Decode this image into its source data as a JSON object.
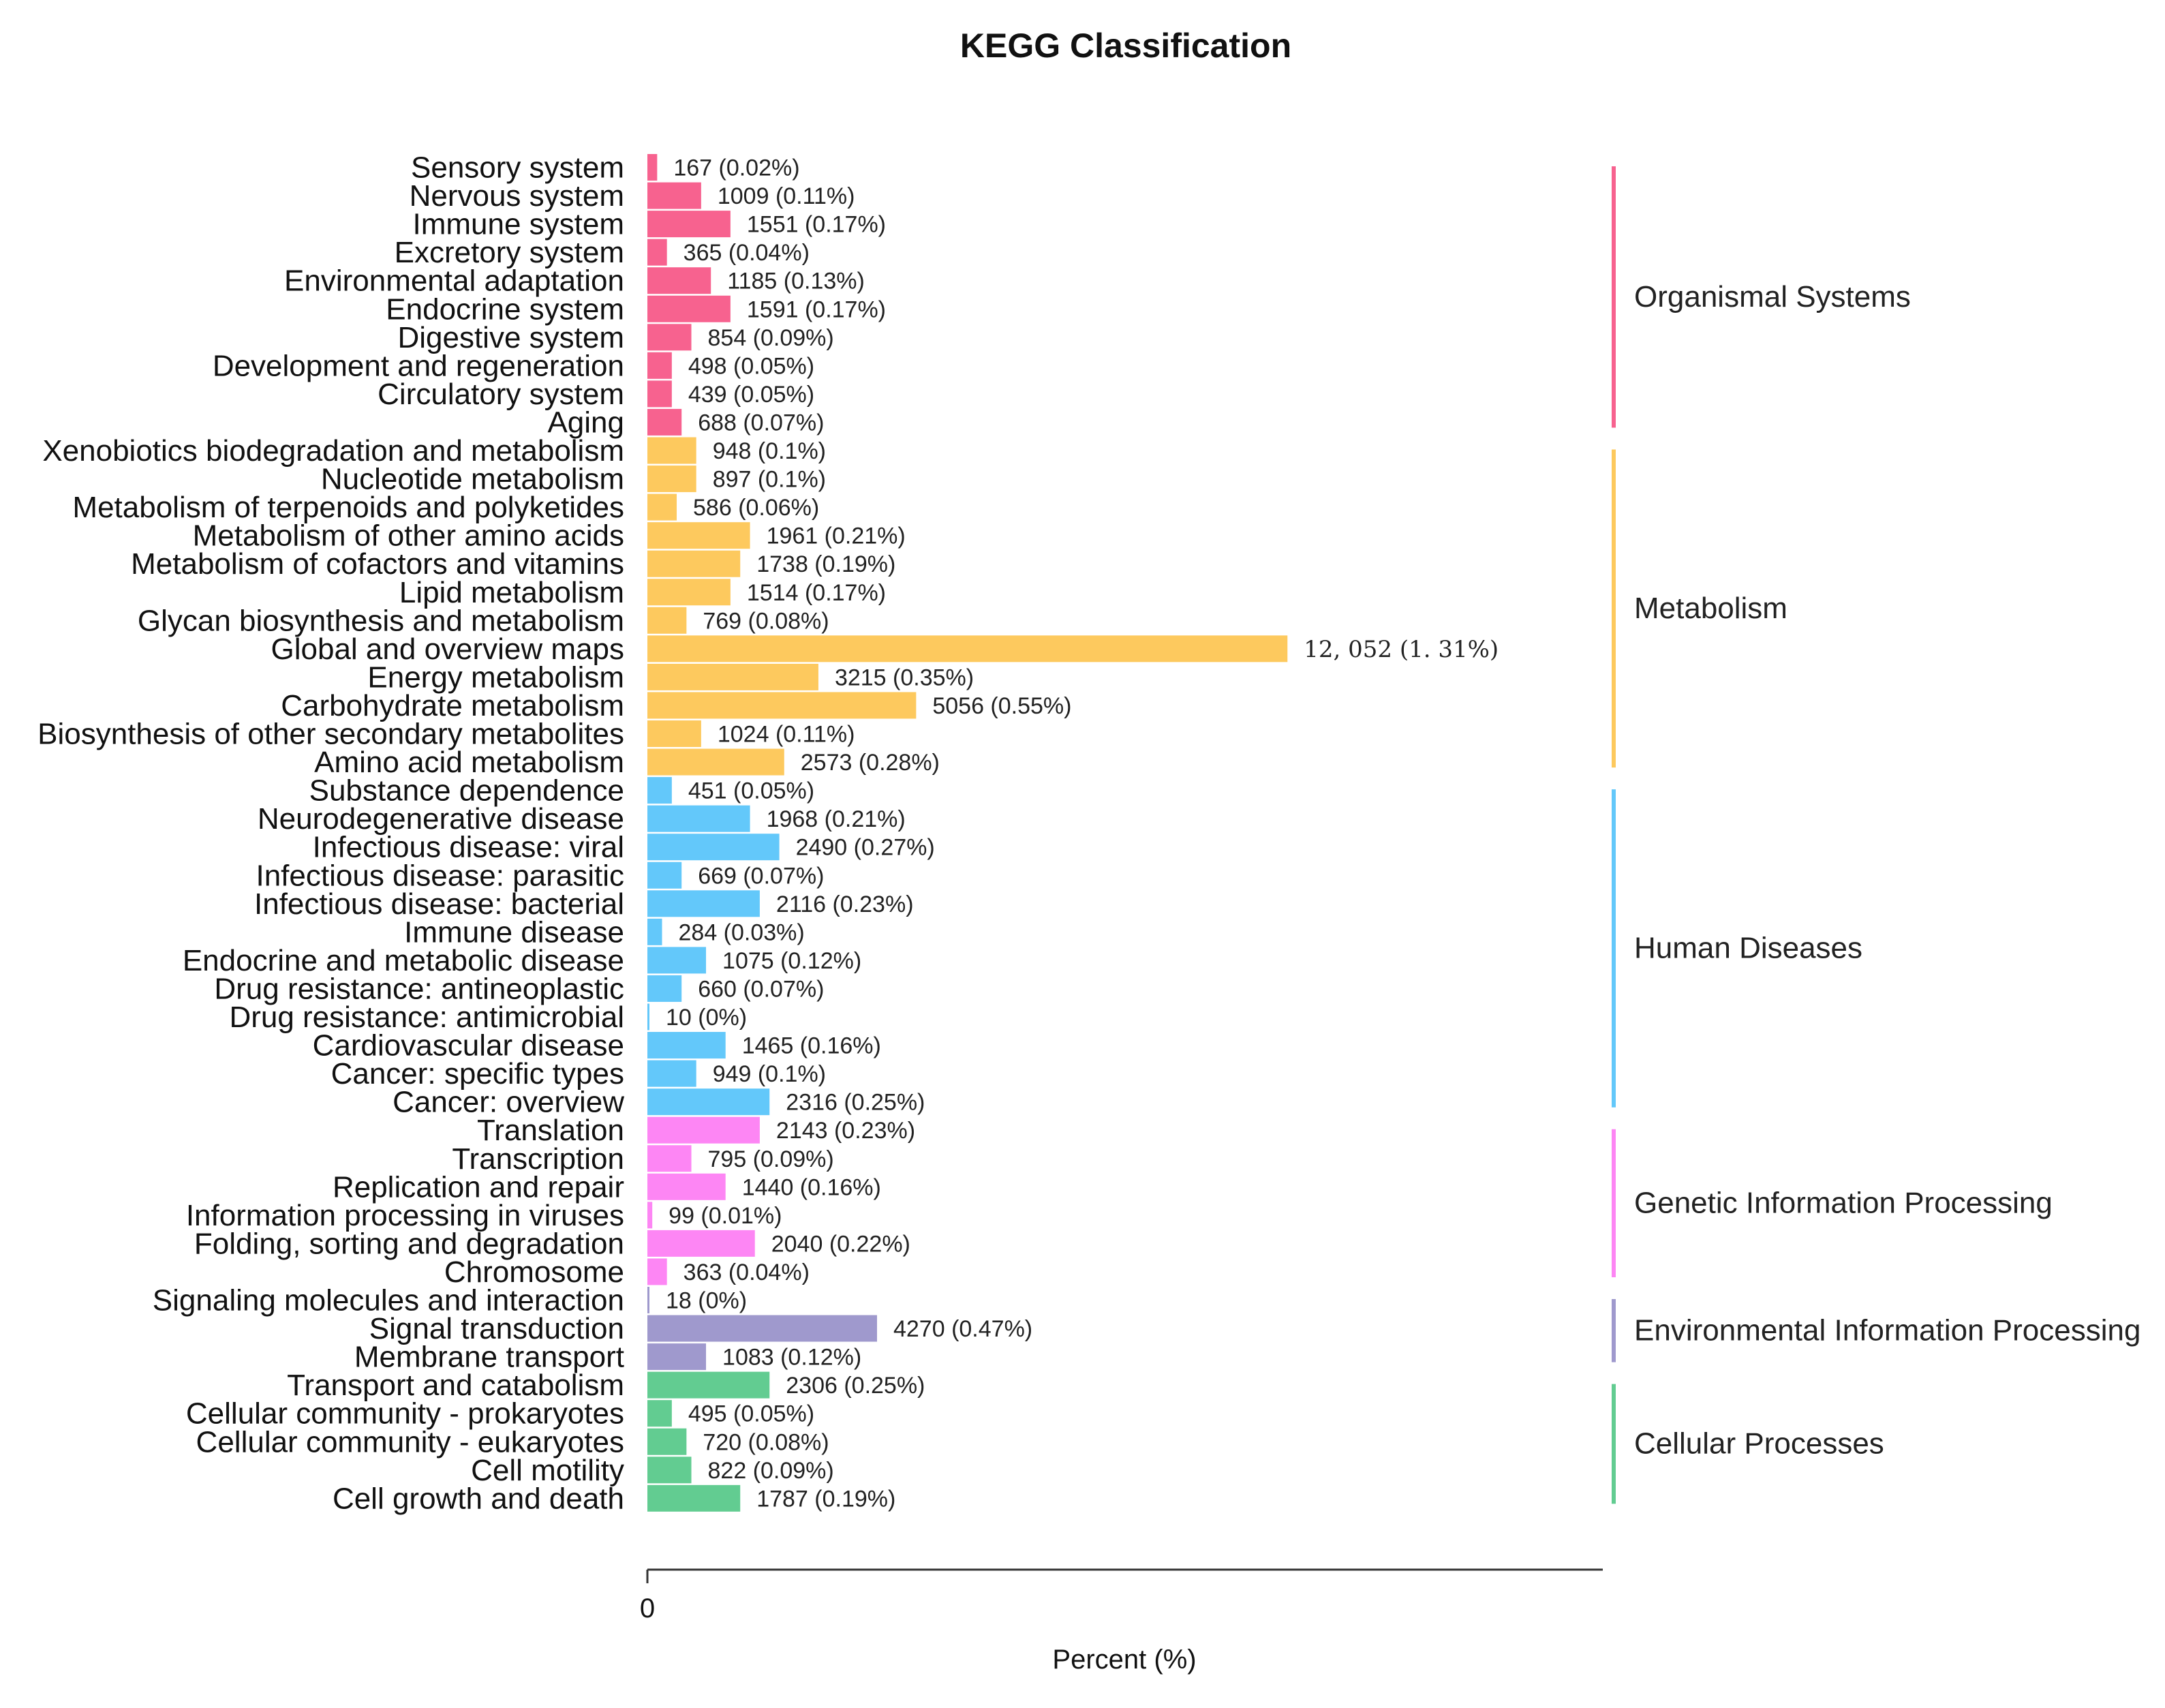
{
  "chart_data": {
    "type": "bar",
    "orientation": "horizontal",
    "title": "KEGG Classification",
    "xlabel": "Percent (%)",
    "ylabel": "",
    "x_ticks": [
      "0"
    ],
    "xlim": [
      0,
      1.96
    ],
    "grid": false,
    "legend": "groups labeled on right",
    "groups": [
      {
        "name": "Organismal Systems",
        "color": "#f7628f",
        "items": [
          {
            "category": "Sensory system",
            "value": 0.02,
            "count": 167,
            "label": "167 (0.02%)"
          },
          {
            "category": "Nervous system",
            "value": 0.11,
            "count": 1009,
            "label": "1009 (0.11%)"
          },
          {
            "category": "Immune system",
            "value": 0.17,
            "count": 1551,
            "label": "1551 (0.17%)"
          },
          {
            "category": "Excretory system",
            "value": 0.04,
            "count": 365,
            "label": "365 (0.04%)"
          },
          {
            "category": "Environmental adaptation",
            "value": 0.13,
            "count": 1185,
            "label": "1185 (0.13%)"
          },
          {
            "category": "Endocrine system",
            "value": 0.17,
            "count": 1591,
            "label": "1591 (0.17%)"
          },
          {
            "category": "Digestive system",
            "value": 0.09,
            "count": 854,
            "label": "854 (0.09%)"
          },
          {
            "category": "Development and regeneration",
            "value": 0.05,
            "count": 498,
            "label": "498 (0.05%)"
          },
          {
            "category": "Circulatory system",
            "value": 0.05,
            "count": 439,
            "label": "439 (0.05%)"
          },
          {
            "category": "Aging",
            "value": 0.07,
            "count": 688,
            "label": "688 (0.07%)"
          }
        ]
      },
      {
        "name": "Metabolism",
        "color": "#fdc95e",
        "items": [
          {
            "category": "Xenobiotics biodegradation and metabolism",
            "value": 0.1,
            "count": 948,
            "label": "948 (0.1%)"
          },
          {
            "category": "Nucleotide metabolism",
            "value": 0.1,
            "count": 897,
            "label": "897 (0.1%)"
          },
          {
            "category": "Metabolism of terpenoids and polyketides",
            "value": 0.06,
            "count": 586,
            "label": "586 (0.06%)"
          },
          {
            "category": "Metabolism of other amino acids",
            "value": 0.21,
            "count": 1961,
            "label": "1961 (0.21%)"
          },
          {
            "category": "Metabolism of cofactors and vitamins",
            "value": 0.19,
            "count": 1738,
            "label": "1738 (0.19%)"
          },
          {
            "category": "Lipid metabolism",
            "value": 0.17,
            "count": 1514,
            "label": "1514 (0.17%)"
          },
          {
            "category": "Glycan biosynthesis and metabolism",
            "value": 0.08,
            "count": 769,
            "label": "769 (0.08%)"
          },
          {
            "category": "Global and overview maps",
            "value": 1.31,
            "count": 12052,
            "label": "12, 052 (1. 31%)",
            "label_style": "alt"
          },
          {
            "category": "Energy metabolism",
            "value": 0.35,
            "count": 3215,
            "label": "3215 (0.35%)"
          },
          {
            "category": "Carbohydrate metabolism",
            "value": 0.55,
            "count": 5056,
            "label": "5056 (0.55%)"
          },
          {
            "category": "Biosynthesis of other secondary metabolites",
            "value": 0.11,
            "count": 1024,
            "label": "1024 (0.11%)"
          },
          {
            "category": "Amino acid metabolism",
            "value": 0.28,
            "count": 2573,
            "label": "2573 (0.28%)"
          }
        ]
      },
      {
        "name": "Human Diseases",
        "color": "#63c8fa",
        "items": [
          {
            "category": "Substance dependence",
            "value": 0.05,
            "count": 451,
            "label": "451 (0.05%)"
          },
          {
            "category": "Neurodegenerative disease",
            "value": 0.21,
            "count": 1968,
            "label": "1968 (0.21%)"
          },
          {
            "category": "Infectious disease: viral",
            "value": 0.27,
            "count": 2490,
            "label": "2490 (0.27%)"
          },
          {
            "category": "Infectious disease: parasitic",
            "value": 0.07,
            "count": 669,
            "label": "669 (0.07%)"
          },
          {
            "category": "Infectious disease: bacterial",
            "value": 0.23,
            "count": 2116,
            "label": "2116 (0.23%)"
          },
          {
            "category": "Immune disease",
            "value": 0.03,
            "count": 284,
            "label": "284 (0.03%)"
          },
          {
            "category": "Endocrine and metabolic disease",
            "value": 0.12,
            "count": 1075,
            "label": "1075 (0.12%)"
          },
          {
            "category": "Drug resistance: antineoplastic",
            "value": 0.07,
            "count": 660,
            "label": "660 (0.07%)"
          },
          {
            "category": "Drug resistance: antimicrobial",
            "value": 0.0,
            "count": 10,
            "label": "10 (0%)"
          },
          {
            "category": "Cardiovascular disease",
            "value": 0.16,
            "count": 1465,
            "label": "1465 (0.16%)"
          },
          {
            "category": "Cancer: specific types",
            "value": 0.1,
            "count": 949,
            "label": "949 (0.1%)"
          },
          {
            "category": "Cancer: overview",
            "value": 0.25,
            "count": 2316,
            "label": "2316 (0.25%)"
          }
        ]
      },
      {
        "name": "Genetic Information Processing",
        "color": "#fd86f4",
        "items": [
          {
            "category": "Translation",
            "value": 0.23,
            "count": 2143,
            "label": "2143 (0.23%)"
          },
          {
            "category": "Transcription",
            "value": 0.09,
            "count": 795,
            "label": "795 (0.09%)"
          },
          {
            "category": "Replication and repair",
            "value": 0.16,
            "count": 1440,
            "label": "1440 (0.16%)"
          },
          {
            "category": "Information processing in viruses",
            "value": 0.01,
            "count": 99,
            "label": "99 (0.01%)"
          },
          {
            "category": "Folding, sorting and degradation",
            "value": 0.22,
            "count": 2040,
            "label": "2040 (0.22%)"
          },
          {
            "category": "Chromosome",
            "value": 0.04,
            "count": 363,
            "label": "363 (0.04%)"
          }
        ]
      },
      {
        "name": "Environmental Information Processing",
        "color": "#9f99cd",
        "items": [
          {
            "category": "Signaling molecules and interaction",
            "value": 0.0,
            "count": 18,
            "label": "18 (0%)"
          },
          {
            "category": "Signal transduction",
            "value": 0.47,
            "count": 4270,
            "label": "4270 (0.47%)"
          },
          {
            "category": "Membrane transport",
            "value": 0.12,
            "count": 1083,
            "label": "1083 (0.12%)"
          }
        ]
      },
      {
        "name": "Cellular Processes",
        "color": "#62cc91",
        "items": [
          {
            "category": "Transport and catabolism",
            "value": 0.25,
            "count": 2306,
            "label": "2306 (0.25%)"
          },
          {
            "category": "Cellular community - prokaryotes",
            "value": 0.05,
            "count": 495,
            "label": "495 (0.05%)"
          },
          {
            "category": "Cellular community - eukaryotes",
            "value": 0.08,
            "count": 720,
            "label": "720 (0.08%)"
          },
          {
            "category": "Cell motility",
            "value": 0.09,
            "count": 822,
            "label": "822 (0.09%)"
          },
          {
            "category": "Cell growth and death",
            "value": 0.19,
            "count": 1787,
            "label": "1787 (0.19%)"
          }
        ]
      }
    ]
  }
}
